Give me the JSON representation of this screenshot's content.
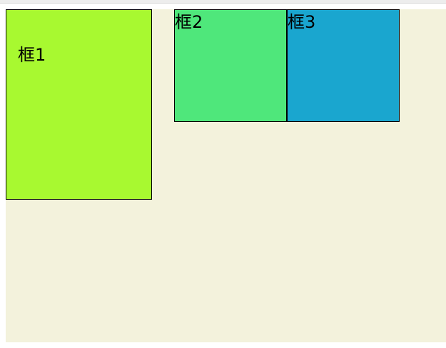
{
  "boxes": [
    {
      "label": "框1",
      "color": "#a8f930"
    },
    {
      "label": "框2",
      "color": "#4fe77b"
    },
    {
      "label": "框3",
      "color": "#1aa6cf"
    }
  ],
  "container": {
    "background": "#f3f2dc"
  }
}
